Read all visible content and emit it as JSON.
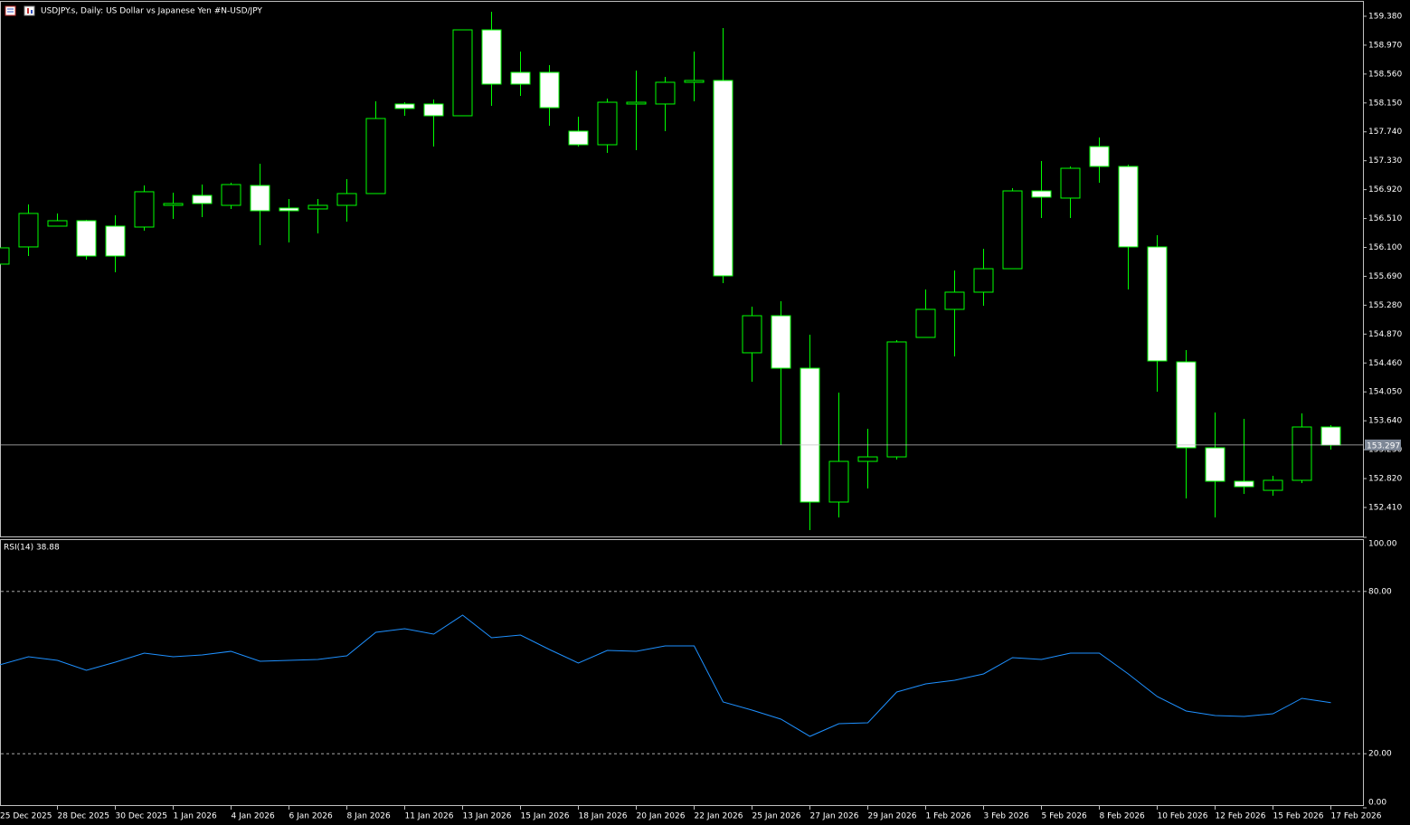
{
  "chart_data": [
    {
      "type": "candlestick",
      "title": "USDJPY.s, Daily:  US Dollar vs  Japanese Yen #N-USD/JPY",
      "categories": [
        "25 Dec 2025",
        null,
        "28 Dec 2025",
        null,
        "30 Dec 2025",
        null,
        "1 Jan 2026",
        null,
        "4 Jan 2026",
        null,
        "6 Jan 2026",
        null,
        "8 Jan 2026",
        null,
        "11 Jan 2026",
        null,
        "13 Jan 2026",
        null,
        "15 Jan 2026",
        null,
        "18 Jan 2026",
        null,
        "20 Jan 2026",
        null,
        "22 Jan 2026",
        null,
        "25 Jan 2026",
        null,
        "27 Jan 2026",
        null,
        "29 Jan 2026",
        null,
        "1 Feb 2026",
        null,
        "3 Feb 2026",
        null,
        "5 Feb 2026",
        null,
        "8 Feb 2026",
        null,
        "10 Feb 2026",
        null,
        "12 Feb 2026",
        null,
        "15 Feb 2026",
        null,
        "17 Feb 2026"
      ],
      "open": [
        155.863,
        156.107,
        156.402,
        156.479,
        156.402,
        156.389,
        156.697,
        156.838,
        156.697,
        156.979,
        156.659,
        156.646,
        156.697,
        156.864,
        158.135,
        158.135,
        157.968,
        159.187,
        158.584,
        158.584,
        157.75,
        157.557,
        158.135,
        158.135,
        158.443,
        158.469,
        154.605,
        155.131,
        154.386,
        152.487,
        153.064,
        153.128,
        154.823,
        155.221,
        155.465,
        155.798,
        156.902,
        156.8,
        157.531,
        157.249,
        156.107,
        154.476,
        153.257,
        152.782,
        152.653,
        152.795,
        153.552
      ],
      "high": [
        156.145,
        156.71,
        156.582,
        156.492,
        156.556,
        156.979,
        156.877,
        156.992,
        157.018,
        157.288,
        156.787,
        156.787,
        157.069,
        158.173,
        158.16,
        158.199,
        159.187,
        159.444,
        158.879,
        158.687,
        157.955,
        158.212,
        158.61,
        158.52,
        158.879,
        159.213,
        155.259,
        155.336,
        154.861,
        154.04,
        153.526,
        154.784,
        155.503,
        155.773,
        156.081,
        156.941,
        157.326,
        157.249,
        157.66,
        157.275,
        156.273,
        154.643,
        153.757,
        153.668,
        152.859,
        153.745,
        153.578
      ],
      "low": [
        155.863,
        155.978,
        156.402,
        155.927,
        155.747,
        156.338,
        156.505,
        156.53,
        156.646,
        156.132,
        156.171,
        156.299,
        156.466,
        156.864,
        157.968,
        157.531,
        157.968,
        158.109,
        158.25,
        157.827,
        157.531,
        157.442,
        157.48,
        157.75,
        158.173,
        155.593,
        154.194,
        153.295,
        152.089,
        152.268,
        152.679,
        153.09,
        154.823,
        154.553,
        155.272,
        155.798,
        156.517,
        156.517,
        157.018,
        155.503,
        154.053,
        152.538,
        152.268,
        152.602,
        152.576,
        152.756,
        153.231
      ],
      "close": [
        156.094,
        156.582,
        156.479,
        155.978,
        155.978,
        156.89,
        156.723,
        156.723,
        156.992,
        156.62,
        156.62,
        156.697,
        156.864,
        157.929,
        158.071,
        157.968,
        159.187,
        158.417,
        158.417,
        158.083,
        157.557,
        158.16,
        158.16,
        158.443,
        158.469,
        155.696,
        155.131,
        154.386,
        152.487,
        153.064,
        153.128,
        154.759,
        155.221,
        155.465,
        155.798,
        156.902,
        156.813,
        157.223,
        157.249,
        156.107,
        154.489,
        153.257,
        152.782,
        152.705,
        152.795,
        153.552,
        153.295
      ],
      "last_price": 153.297,
      "up_color": "#00ff00",
      "up_fill": "#000000",
      "down_fill": "#ffffff",
      "ylim": [
        151.999,
        159.585
      ],
      "yticks": [
        {
          "value": 159.38,
          "label": "159.380"
        },
        {
          "value": 158.97,
          "label": "158.970"
        },
        {
          "value": 158.56,
          "label": "158.560"
        },
        {
          "value": 158.15,
          "label": "158.150"
        },
        {
          "value": 157.74,
          "label": "157.740"
        },
        {
          "value": 157.33,
          "label": "157.330"
        },
        {
          "value": 156.92,
          "label": "156.920"
        },
        {
          "value": 156.51,
          "label": "156.510"
        },
        {
          "value": 156.1,
          "label": "156.100"
        },
        {
          "value": 155.69,
          "label": "155.690"
        },
        {
          "value": 155.28,
          "label": "155.280"
        },
        {
          "value": 154.87,
          "label": "154.870"
        },
        {
          "value": 154.46,
          "label": "154.460"
        },
        {
          "value": 154.05,
          "label": "154.050"
        },
        {
          "value": 153.64,
          "label": "153.640"
        },
        {
          "value": 153.23,
          "label": "153.230"
        },
        {
          "value": 152.82,
          "label": "152.820"
        },
        {
          "value": 152.41,
          "label": "152.410"
        }
      ]
    },
    {
      "type": "line",
      "title": "RSI(14) 38.88",
      "color": "#1e90ff",
      "values": [
        52.84,
        55.85,
        54.52,
        50.84,
        53.85,
        57.19,
        55.85,
        56.52,
        57.86,
        54.18,
        54.52,
        54.85,
        56.19,
        64.88,
        66.22,
        64.21,
        71.24,
        62.88,
        63.88,
        58.53,
        53.51,
        58.19,
        57.86,
        59.87,
        59.87,
        39.13,
        36.12,
        32.78,
        26.42,
        31.1,
        31.44,
        42.81,
        45.82,
        47.16,
        49.5,
        55.52,
        54.85,
        57.19,
        57.19,
        49.5,
        41.14,
        35.79,
        34.11,
        33.78,
        34.78,
        40.47,
        38.88
      ],
      "ylim": [
        0,
        100
      ],
      "yticks": [
        {
          "value": 100,
          "label": "100.00"
        },
        {
          "value": 80,
          "label": "80.00"
        },
        {
          "value": 20,
          "label": "20.00"
        },
        {
          "value": 0,
          "label": "0.00"
        }
      ],
      "dashed_levels": [
        80,
        20
      ]
    }
  ]
}
